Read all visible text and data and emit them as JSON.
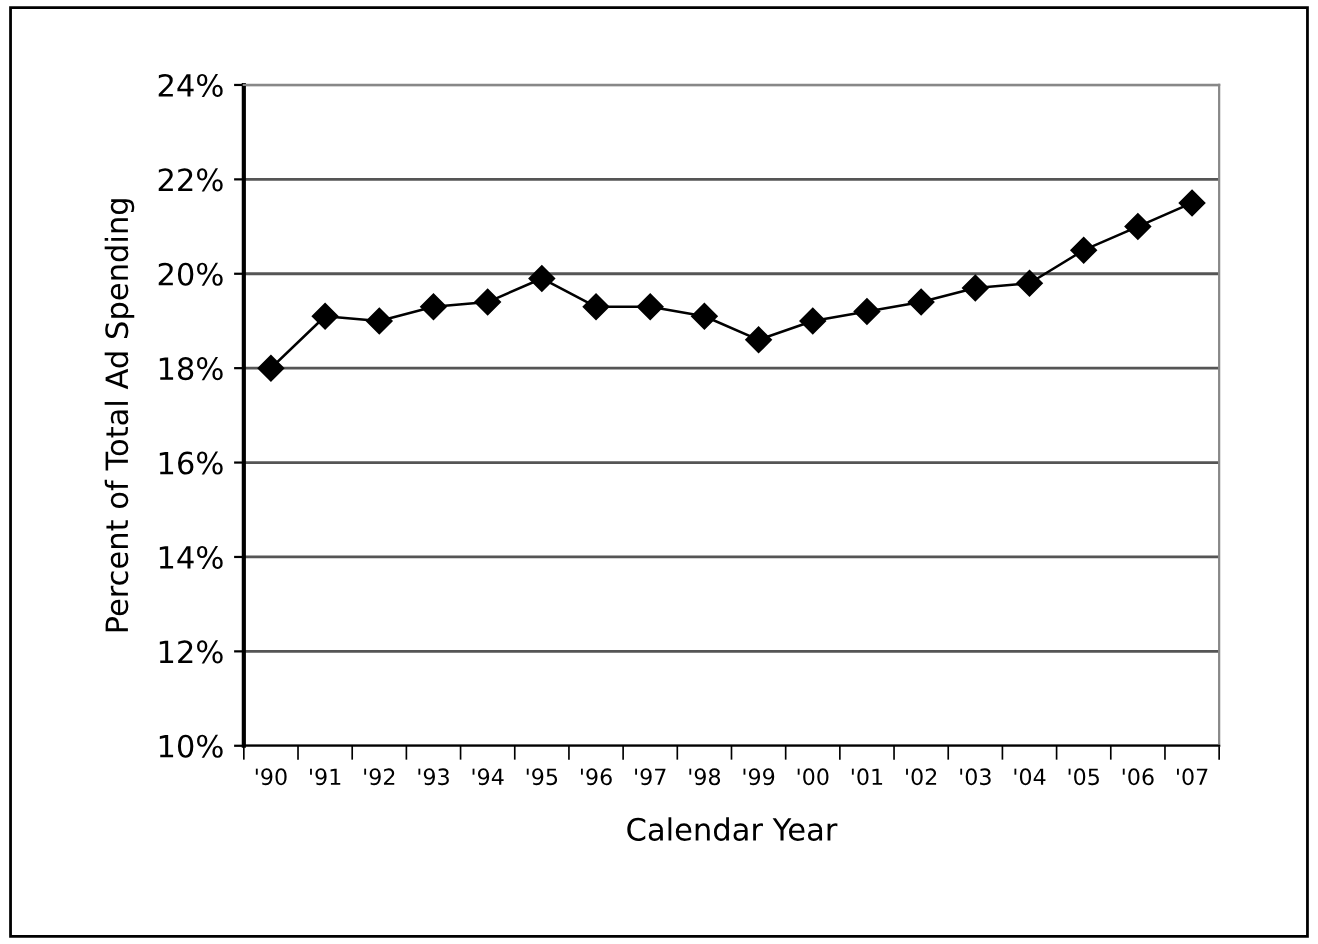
{
  "chart_data": {
    "type": "line",
    "xlabel": "Calendar Year",
    "ylabel": "Percent of Total Ad Spending",
    "categories": [
      "'90",
      "'91",
      "'92",
      "'93",
      "'94",
      "'95",
      "'96",
      "'97",
      "'98",
      "'99",
      "'00",
      "'01",
      "'02",
      "'03",
      "'04",
      "'05",
      "'06",
      "'07"
    ],
    "series": [
      {
        "color": "#000000",
        "values": [
          18.0,
          19.1,
          19.0,
          19.3,
          19.4,
          19.9,
          19.3,
          19.3,
          19.1,
          18.6,
          19.0,
          19.2,
          19.4,
          19.7,
          19.8,
          20.5,
          21.0,
          21.5
        ]
      }
    ],
    "ylim": [
      10,
      24
    ],
    "yticks": [
      {
        "value": 10,
        "label": "10%"
      },
      {
        "value": 12,
        "label": "12%"
      },
      {
        "value": 14,
        "label": "14%"
      },
      {
        "value": 16,
        "label": "16%"
      },
      {
        "value": 18,
        "label": "18%"
      },
      {
        "value": 20,
        "label": "20%"
      },
      {
        "value": 22,
        "label": "22%"
      },
      {
        "value": 24,
        "label": "24%"
      }
    ],
    "grid": "y",
    "marker": "diamond",
    "line_style": "solid",
    "legend": false
  }
}
